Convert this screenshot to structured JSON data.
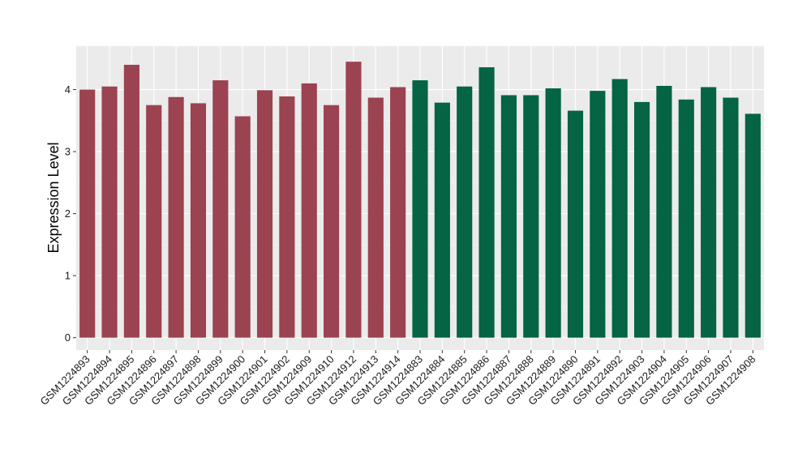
{
  "chart_data": {
    "type": "bar",
    "title": "",
    "xlabel": "",
    "ylabel": "Expression Level",
    "ylim": [
      -0.2,
      4.7
    ],
    "yticks": [
      0,
      1,
      2,
      3,
      4
    ],
    "grid": true,
    "legend": "none",
    "background": "#ebebeb",
    "categories": [
      "GSM1224893",
      "GSM1224894",
      "GSM1224895",
      "GSM1224896",
      "GSM1224897",
      "GSM1224898",
      "GSM1224899",
      "GSM1224900",
      "GSM1224901",
      "GSM1224902",
      "GSM1224909",
      "GSM1224910",
      "GSM1224912",
      "GSM1224913",
      "GSM1224914",
      "GSM1224883",
      "GSM1224884",
      "GSM1224885",
      "GSM1224886",
      "GSM1224887",
      "GSM1224888",
      "GSM1224889",
      "GSM1224890",
      "GSM1224891",
      "GSM1224892",
      "GSM1224903",
      "GSM1224904",
      "GSM1224905",
      "GSM1224906",
      "GSM1224907",
      "GSM1224908"
    ],
    "values": [
      4.0,
      4.05,
      4.4,
      3.75,
      3.88,
      3.78,
      4.15,
      3.57,
      3.99,
      3.89,
      4.1,
      3.75,
      4.45,
      3.87,
      4.04,
      4.15,
      3.79,
      4.05,
      4.36,
      3.91,
      3.91,
      4.02,
      3.66,
      3.98,
      4.17,
      3.8,
      4.06,
      3.84,
      4.04,
      3.87,
      3.61
    ],
    "groups": [
      0,
      0,
      0,
      0,
      0,
      0,
      0,
      0,
      0,
      0,
      0,
      0,
      0,
      0,
      0,
      1,
      1,
      1,
      1,
      1,
      1,
      1,
      1,
      1,
      1,
      1,
      1,
      1,
      1,
      1,
      1
    ],
    "colors": [
      "#9b4350",
      "#046444"
    ]
  }
}
